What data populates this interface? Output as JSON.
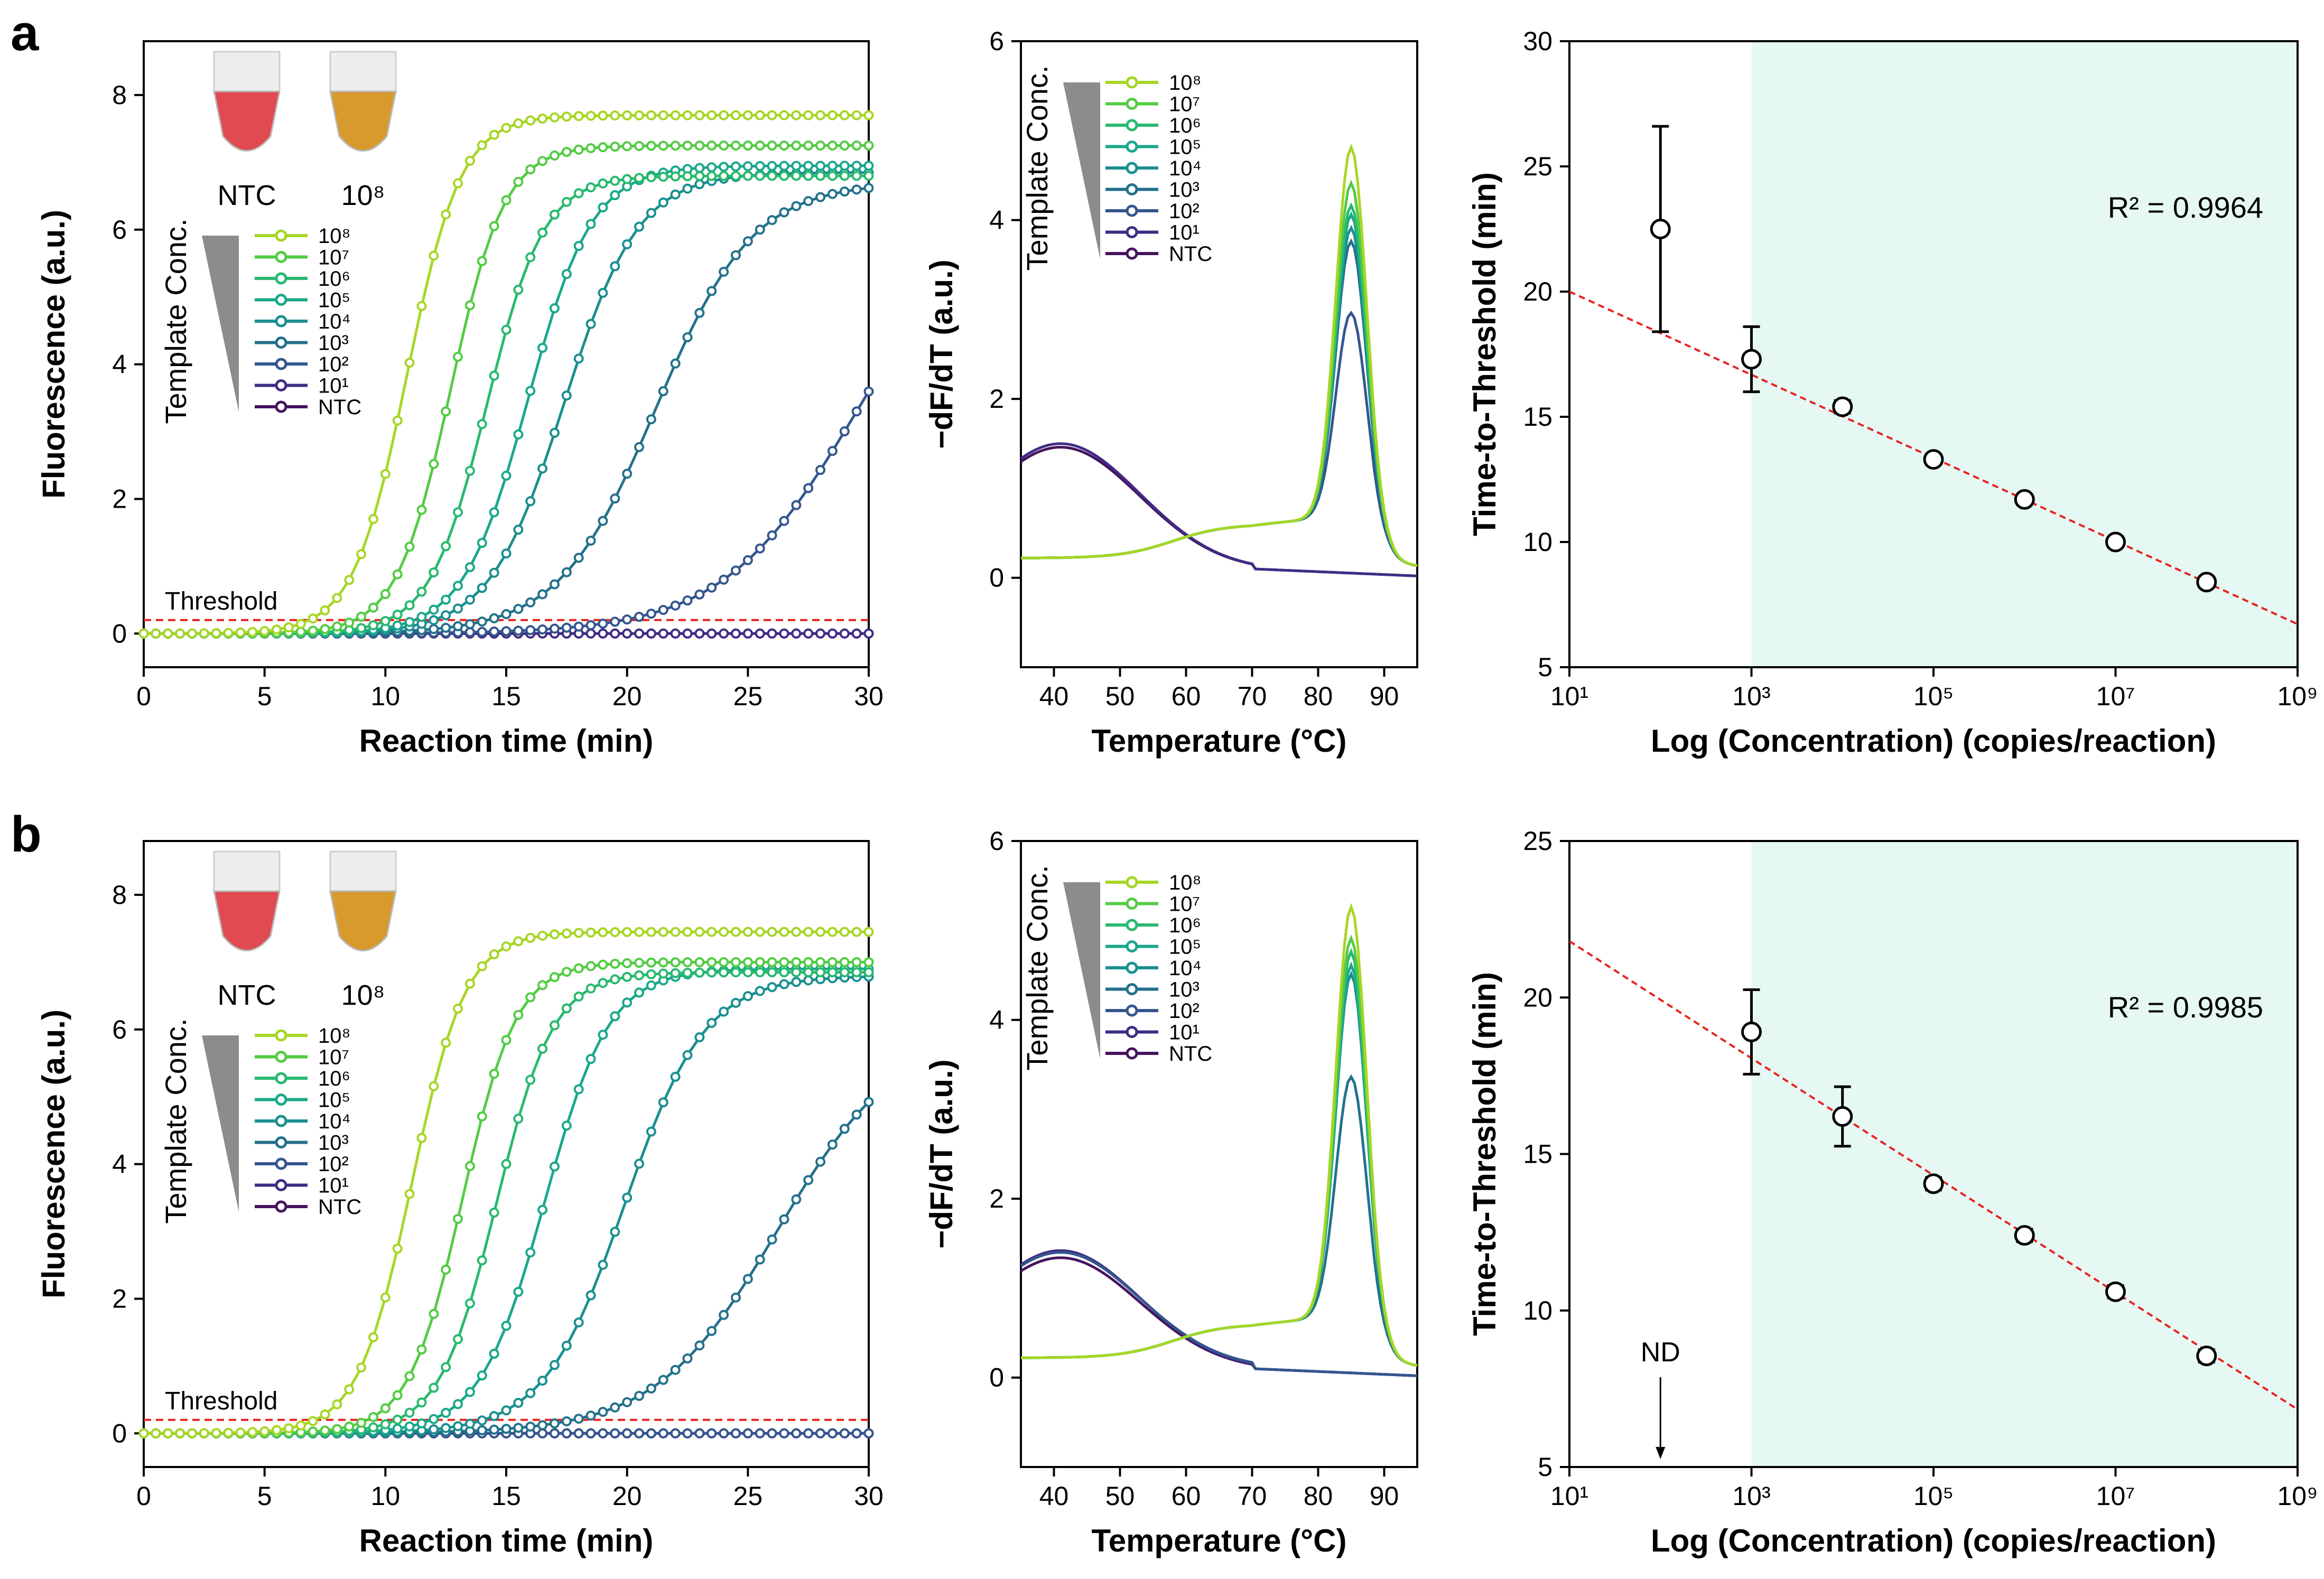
{
  "figure": {
    "panel_labels": [
      "a",
      "b"
    ]
  },
  "colors": {
    "series": [
      "#a6d626",
      "#52cc43",
      "#28b96f",
      "#1aa88a",
      "#1a8f8f",
      "#23718c",
      "#34568f",
      "#402c85",
      "#46145f"
    ],
    "threshold": "#e8231f",
    "fit_line": "#e8231f",
    "shade": "#e6f8f3",
    "wedge": "#8c8c8c",
    "error_bar": "#000000",
    "marker_face": "#ffffff",
    "tube_ntc": "#e04a50",
    "tube_pos": "#d89a2c"
  },
  "chart_data": [
    {
      "id": "a-amplification",
      "type": "line",
      "xlabel": "Reaction time (min)",
      "ylabel": "Fluorescence (a.u.)",
      "xlim": [
        0,
        30
      ],
      "ylim": [
        -0.5,
        8.8
      ],
      "xticks": [
        0,
        5,
        10,
        15,
        20,
        25,
        30
      ],
      "yticks": [
        0,
        2,
        4,
        6,
        8
      ],
      "threshold": 0.2,
      "threshold_label": "Threshold",
      "legend_title": "Template Conc.",
      "legend": [
        "10⁸",
        "10⁷",
        "10⁶",
        "10⁵",
        "10⁴",
        "10³",
        "10²",
        "10¹",
        "NTC"
      ],
      "tube_labels": [
        "NTC",
        "10⁸"
      ],
      "series": [
        {
          "name": "10⁸",
          "plateau": 7.7,
          "midpoint": 10.9,
          "rate": 0.9
        },
        {
          "name": "10⁷",
          "plateau": 7.25,
          "midpoint": 12.7,
          "rate": 0.9
        },
        {
          "name": "10⁶",
          "plateau": 6.8,
          "midpoint": 14.2,
          "rate": 0.85
        },
        {
          "name": "10⁵",
          "plateau": 6.95,
          "midpoint": 15.9,
          "rate": 0.75
        },
        {
          "name": "10⁴",
          "plateau": 6.85,
          "midpoint": 17.4,
          "rate": 0.65
        },
        {
          "name": "10³",
          "plateau": 6.7,
          "midpoint": 21.2,
          "rate": 0.5
        },
        {
          "name": "10²",
          "plateau": 6.6,
          "midpoint": 29.5,
          "rate": 0.36
        },
        {
          "name": "10¹",
          "plateau": 0,
          "midpoint": 0,
          "rate": 0
        },
        {
          "name": "NTC",
          "plateau": 0,
          "midpoint": 0,
          "rate": 0
        }
      ]
    },
    {
      "id": "a-melt",
      "type": "line",
      "xlabel": "Temperature (°C)",
      "ylabel": "−dF/dT (a.u.)",
      "xlim": [
        35,
        95
      ],
      "ylim": [
        -1,
        6
      ],
      "xticks": [
        40,
        50,
        60,
        70,
        80,
        90
      ],
      "yticks": [
        0,
        2,
        4,
        6
      ],
      "legend_title": "Template Conc.",
      "legend": [
        "10⁸",
        "10⁷",
        "10⁶",
        "10⁵",
        "10⁴",
        "10³",
        "10²",
        "10¹",
        "NTC"
      ],
      "series": [
        {
          "name": "10⁸",
          "peak": 4.75
        },
        {
          "name": "10⁷",
          "peak": 4.35
        },
        {
          "name": "10⁶",
          "peak": 4.1
        },
        {
          "name": "10⁵",
          "peak": 4.0
        },
        {
          "name": "10⁴",
          "peak": 3.85
        },
        {
          "name": "10³",
          "peak": 3.7
        },
        {
          "name": "10²",
          "peak": 2.9
        },
        {
          "name": "10¹",
          "peak": 0,
          "bump": 1.42
        },
        {
          "name": "NTC",
          "peak": 0,
          "bump": 1.38
        }
      ]
    },
    {
      "id": "a-standard",
      "type": "scatter",
      "xlabel": "Log (Concentration) (copies/reaction)",
      "ylabel": "Time-to-Threshold (min)",
      "xlim": [
        1,
        9
      ],
      "ylim": [
        5,
        30
      ],
      "xticks": [
        1,
        3,
        5,
        7,
        9
      ],
      "xtick_labels": [
        "10¹",
        "10³",
        "10⁵",
        "10⁷",
        "10⁹"
      ],
      "yticks": [
        5,
        10,
        15,
        20,
        25,
        30
      ],
      "shade_from": 3,
      "points": [
        {
          "x": 2,
          "y": 22.5,
          "err": 4.1
        },
        {
          "x": 3,
          "y": 17.3,
          "err": 1.3
        },
        {
          "x": 4,
          "y": 15.4,
          "err": 0.25
        },
        {
          "x": 5,
          "y": 13.3,
          "err": 0.2
        },
        {
          "x": 6,
          "y": 11.7,
          "err": 0.2
        },
        {
          "x": 7,
          "y": 10.0,
          "err": 0.2
        },
        {
          "x": 8,
          "y": 8.4,
          "err": 0.2
        }
      ],
      "fit": {
        "intercept": 20.0,
        "slope": -1.66
      },
      "r2_text": "R² = 0.9964"
    },
    {
      "id": "b-amplification",
      "type": "line",
      "xlabel": "Reaction time (min)",
      "ylabel": "Fluorescence (a.u.)",
      "xlim": [
        0,
        30
      ],
      "ylim": [
        -0.5,
        8.8
      ],
      "xticks": [
        0,
        5,
        10,
        15,
        20,
        25,
        30
      ],
      "yticks": [
        0,
        2,
        4,
        6,
        8
      ],
      "threshold": 0.2,
      "threshold_label": "Threshold",
      "legend_title": "Template Conc.",
      "legend": [
        "10⁸",
        "10⁷",
        "10⁶",
        "10⁵",
        "10⁴",
        "10³",
        "10²",
        "10¹",
        "NTC"
      ],
      "tube_labels": [
        "NTC",
        "10⁸"
      ],
      "series": [
        {
          "name": "10⁸",
          "plateau": 7.45,
          "midpoint": 11.1,
          "rate": 0.9
        },
        {
          "name": "10⁷",
          "plateau": 7.0,
          "midpoint": 13.2,
          "rate": 0.9
        },
        {
          "name": "10⁶",
          "plateau": 6.85,
          "midpoint": 14.6,
          "rate": 0.85
        },
        {
          "name": "10⁵",
          "plateau": 6.9,
          "midpoint": 16.6,
          "rate": 0.75
        },
        {
          "name": "10⁴",
          "plateau": 6.8,
          "midpoint": 19.9,
          "rate": 0.6
        },
        {
          "name": "10³",
          "plateau": 6.0,
          "midpoint": 26.2,
          "rate": 0.4
        },
        {
          "name": "10²",
          "plateau": 0,
          "midpoint": 0,
          "rate": 0
        },
        {
          "name": "10¹",
          "plateau": 0,
          "midpoint": 0,
          "rate": 0
        },
        {
          "name": "NTC",
          "plateau": 0,
          "midpoint": 0,
          "rate": 0
        }
      ]
    },
    {
      "id": "b-melt",
      "type": "line",
      "xlabel": "Temperature (°C)",
      "ylabel": "−dF/dT (a.u.)",
      "xlim": [
        35,
        95
      ],
      "ylim": [
        -1,
        6
      ],
      "xticks": [
        40,
        50,
        60,
        70,
        80,
        90
      ],
      "yticks": [
        0,
        2,
        4,
        6
      ],
      "legend_title": "Template Conc.",
      "legend": [
        "10⁸",
        "10⁷",
        "10⁶",
        "10⁵",
        "10⁴",
        "10³",
        "10²",
        "10¹",
        "NTC"
      ],
      "series": [
        {
          "name": "10⁸",
          "peak": 5.2
        },
        {
          "name": "10⁷",
          "peak": 4.85
        },
        {
          "name": "10⁶",
          "peak": 4.7
        },
        {
          "name": "10⁵",
          "peak": 4.55
        },
        {
          "name": "10⁴",
          "peak": 4.45
        },
        {
          "name": "10³",
          "peak": 3.3
        },
        {
          "name": "10²",
          "peak": 0,
          "bump": 1.3
        },
        {
          "name": "10¹",
          "peak": 0,
          "bump": 1.34
        },
        {
          "name": "NTC",
          "peak": 0,
          "bump": 1.26
        }
      ]
    },
    {
      "id": "b-standard",
      "type": "scatter",
      "xlabel": "Log (Concentration) (copies/reaction)",
      "ylabel": "Time-to-Threshold (min)",
      "xlim": [
        1,
        9
      ],
      "ylim": [
        5,
        25
      ],
      "xticks": [
        1,
        3,
        5,
        7,
        9
      ],
      "xtick_labels": [
        "10¹",
        "10³",
        "10⁵",
        "10⁷",
        "10⁹"
      ],
      "yticks": [
        5,
        10,
        15,
        20,
        25
      ],
      "shade_from": 3,
      "points": [
        {
          "x": 3,
          "y": 18.9,
          "err": 1.35
        },
        {
          "x": 4,
          "y": 16.2,
          "err": 0.95
        },
        {
          "x": 5,
          "y": 14.05,
          "err": 0.2
        },
        {
          "x": 6,
          "y": 12.4,
          "err": 0.2
        },
        {
          "x": 7,
          "y": 10.6,
          "err": 0.2
        },
        {
          "x": 8,
          "y": 8.55,
          "err": 0.2
        }
      ],
      "fit": {
        "intercept": 21.8,
        "slope": -1.87
      },
      "r2_text": "R² = 0.9985",
      "nd_label": "ND",
      "nd_x": 2
    }
  ]
}
